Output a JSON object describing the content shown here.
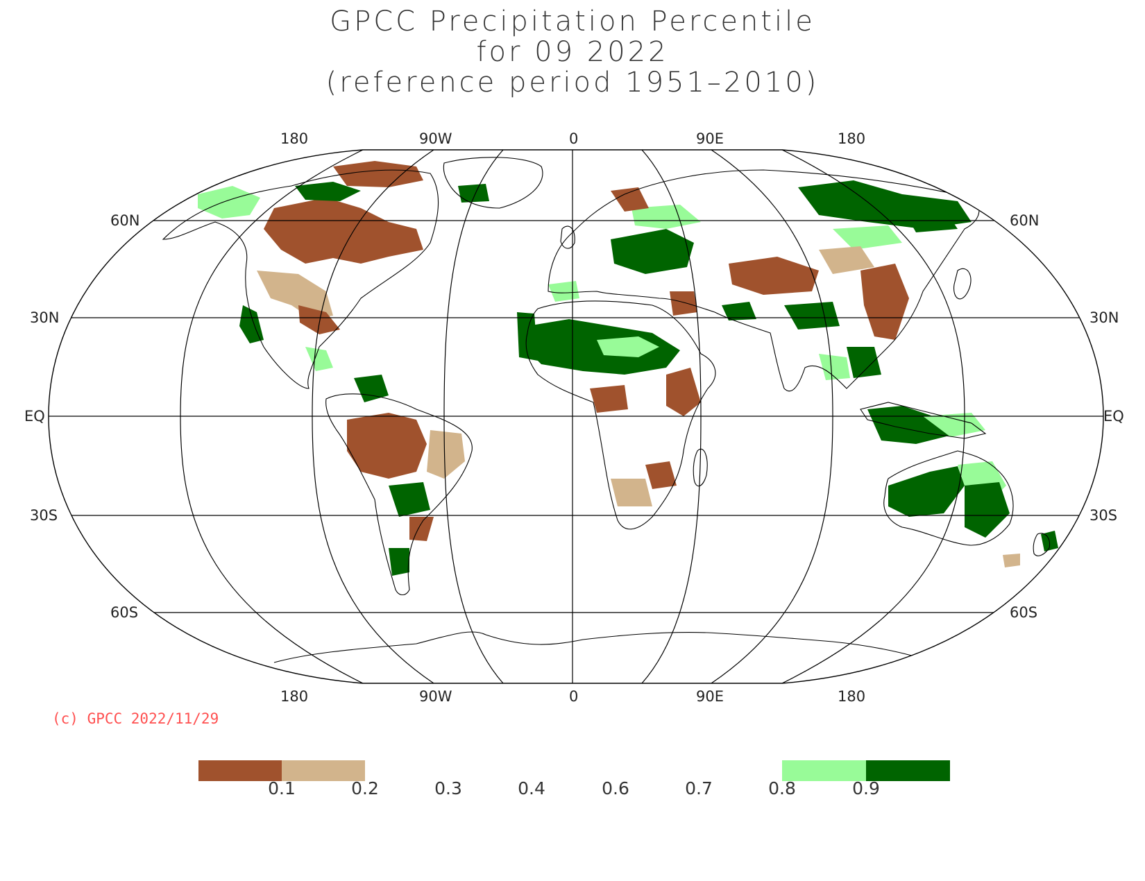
{
  "titles": {
    "line1": "GPCC Precipitation Percentile",
    "line2": "for 09 2022",
    "line3": "(reference period 1951–2010)"
  },
  "longitude_labels": [
    "180",
    "90W",
    "0",
    "90E",
    "180"
  ],
  "latitude_labels": {
    "n60": "60N",
    "n30": "30N",
    "eq": "EQ",
    "s30": "30S",
    "s60": "60S"
  },
  "copyright": "(c) GPCC 2022/11/29",
  "colorbar": {
    "labels": [
      "0.1",
      "0.2",
      "0.3",
      "0.4",
      "0.6",
      "0.7",
      "0.8",
      "0.9"
    ],
    "bins": [
      {
        "range": "<0.1",
        "color": "#a0522d"
      },
      {
        "range": "0.1-0.2",
        "color": "#d2b48c"
      },
      {
        "range": "0.8-0.9",
        "color": "#98fb98"
      },
      {
        "range": ">0.9",
        "color": "#006400"
      }
    ]
  },
  "colors": {
    "very_dry": "#a0522d",
    "dry": "#d2b48c",
    "wet": "#98fb98",
    "very_wet": "#006400"
  }
}
